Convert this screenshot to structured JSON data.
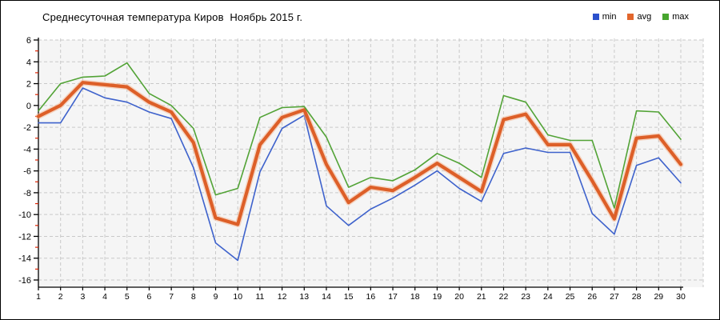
{
  "legend": [
    {
      "label": "min",
      "color": "#2b50cc"
    },
    {
      "label": "avg",
      "color": "#e2662c"
    },
    {
      "label": "max",
      "color": "#47a52e"
    }
  ],
  "chart_data": {
    "type": "line",
    "title": "Среднесуточная температура Киров  Ноябрь 2015 г.",
    "xlabel": "",
    "ylabel": "",
    "x": [
      1,
      2,
      3,
      4,
      5,
      6,
      7,
      8,
      9,
      10,
      11,
      12,
      13,
      14,
      15,
      16,
      17,
      18,
      19,
      20,
      21,
      22,
      23,
      24,
      25,
      26,
      27,
      28,
      29,
      30
    ],
    "xticks": [
      1,
      2,
      3,
      4,
      5,
      6,
      7,
      8,
      9,
      10,
      11,
      12,
      13,
      14,
      15,
      16,
      17,
      18,
      19,
      20,
      21,
      22,
      23,
      24,
      25,
      26,
      27,
      28,
      29,
      30
    ],
    "yticks": [
      6,
      4,
      2,
      0,
      -2,
      -4,
      -6,
      -8,
      -10,
      -12,
      -14,
      -16
    ],
    "ylim": [
      -16,
      6
    ],
    "grid": true,
    "legend_position": "top-right",
    "series": [
      {
        "name": "min",
        "color": "#3e62cc",
        "width": 1.6,
        "values": [
          -1.6,
          -1.6,
          1.6,
          0.7,
          0.3,
          -0.6,
          -1.2,
          -5.7,
          -12.6,
          -14.2,
          -6.1,
          -2.1,
          -0.9,
          -9.2,
          -11.0,
          -9.5,
          -8.5,
          -7.3,
          -6.0,
          -7.6,
          -8.8,
          -4.4,
          -3.9,
          -4.3,
          -4.3,
          -9.9,
          -11.8,
          -5.5,
          -4.8,
          -7.1
        ]
      },
      {
        "name": "avg",
        "color": "#dd5f28",
        "width": 4.2,
        "halo": "#f4b896",
        "values": [
          -1.0,
          0.0,
          2.1,
          1.9,
          1.7,
          0.3,
          -0.6,
          -3.4,
          -10.3,
          -10.9,
          -3.6,
          -1.1,
          -0.4,
          -5.4,
          -8.9,
          -7.5,
          -7.8,
          -6.6,
          -5.3,
          -6.6,
          -7.9,
          -1.3,
          -0.8,
          -3.6,
          -3.6,
          -6.9,
          -10.4,
          -3.0,
          -2.8,
          -5.4
        ]
      },
      {
        "name": "max",
        "color": "#52a336",
        "width": 1.6,
        "values": [
          -0.5,
          2.0,
          2.6,
          2.7,
          3.9,
          1.1,
          0.0,
          -2.1,
          -8.2,
          -7.6,
          -1.1,
          -0.2,
          -0.1,
          -2.9,
          -7.5,
          -6.6,
          -6.9,
          -5.9,
          -4.4,
          -5.3,
          -6.6,
          0.9,
          0.3,
          -2.7,
          -3.2,
          -3.2,
          -9.4,
          -0.5,
          -0.6,
          -3.1
        ]
      }
    ],
    "colors": {
      "plot_bg": "#f5f5f5",
      "grid": "#c9c9c9",
      "axis": "#000000",
      "minor_tick": "#dd2200",
      "tick_label": "#000000"
    }
  }
}
